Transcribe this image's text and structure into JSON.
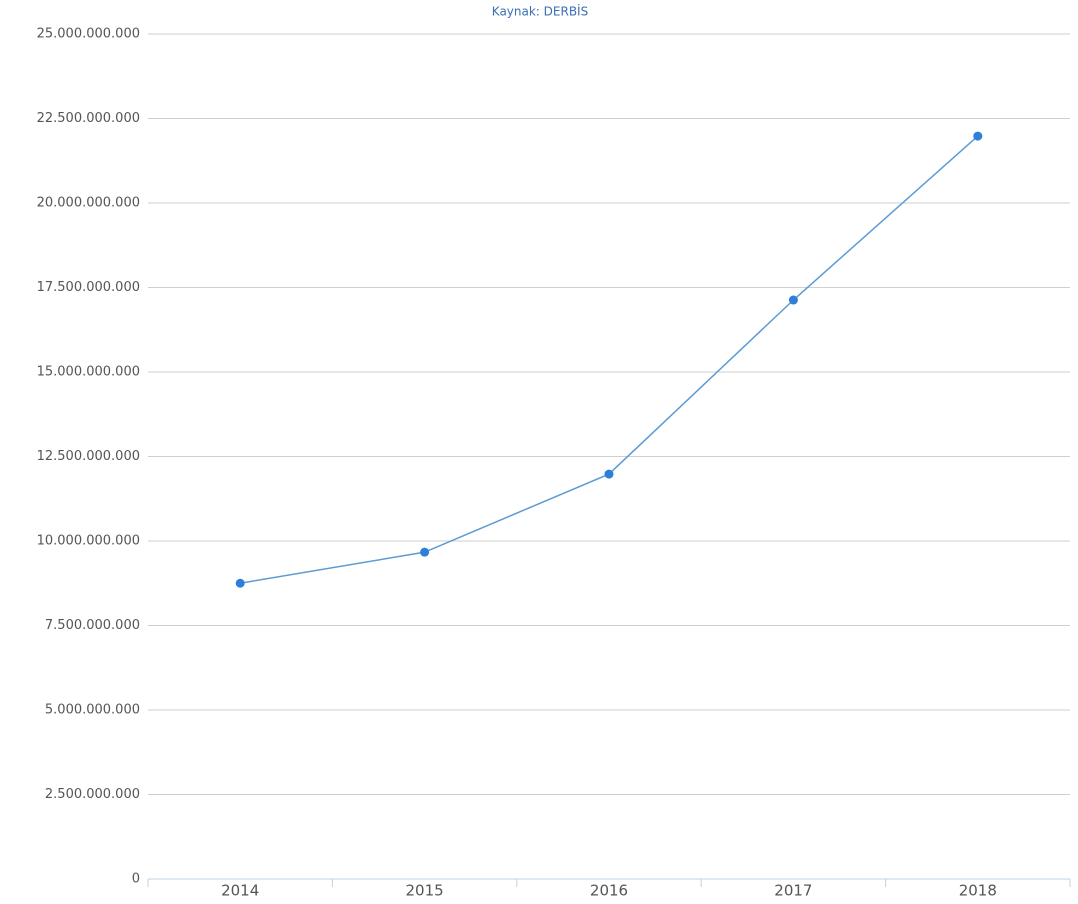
{
  "chart_data": {
    "type": "line",
    "subtitle": "Kaynak: DERBİS",
    "categories": [
      "2014",
      "2015",
      "2016",
      "2017",
      "2018"
    ],
    "series": [
      {
        "name": null,
        "color": "#2f7ed8",
        "values": [
          8750000000,
          9670000000,
          11980000000,
          17130000000,
          21980000000
        ]
      }
    ],
    "ylim": [
      0,
      25000000000
    ],
    "yticks": [
      0,
      {
        "value": 2500000000,
        "label": "2.500.000.000"
      },
      {
        "value": 5000000000,
        "label": "5.000.000.000"
      },
      {
        "value": 7500000000,
        "label": "7.500.000.000"
      },
      {
        "value": 10000000000,
        "label": "10.000.000.000"
      },
      {
        "value": 12500000000,
        "label": "12.500.000.000"
      },
      {
        "value": 15000000000,
        "label": "15.000.000.000"
      },
      {
        "value": 17500000000,
        "label": "17.500.000.000"
      },
      {
        "value": 20000000000,
        "label": "20.000.000.000"
      },
      {
        "value": 22500000000,
        "label": "22.500.000.000"
      },
      {
        "value": 25000000000,
        "label": "25.000.000.000"
      }
    ],
    "grid": true
  }
}
